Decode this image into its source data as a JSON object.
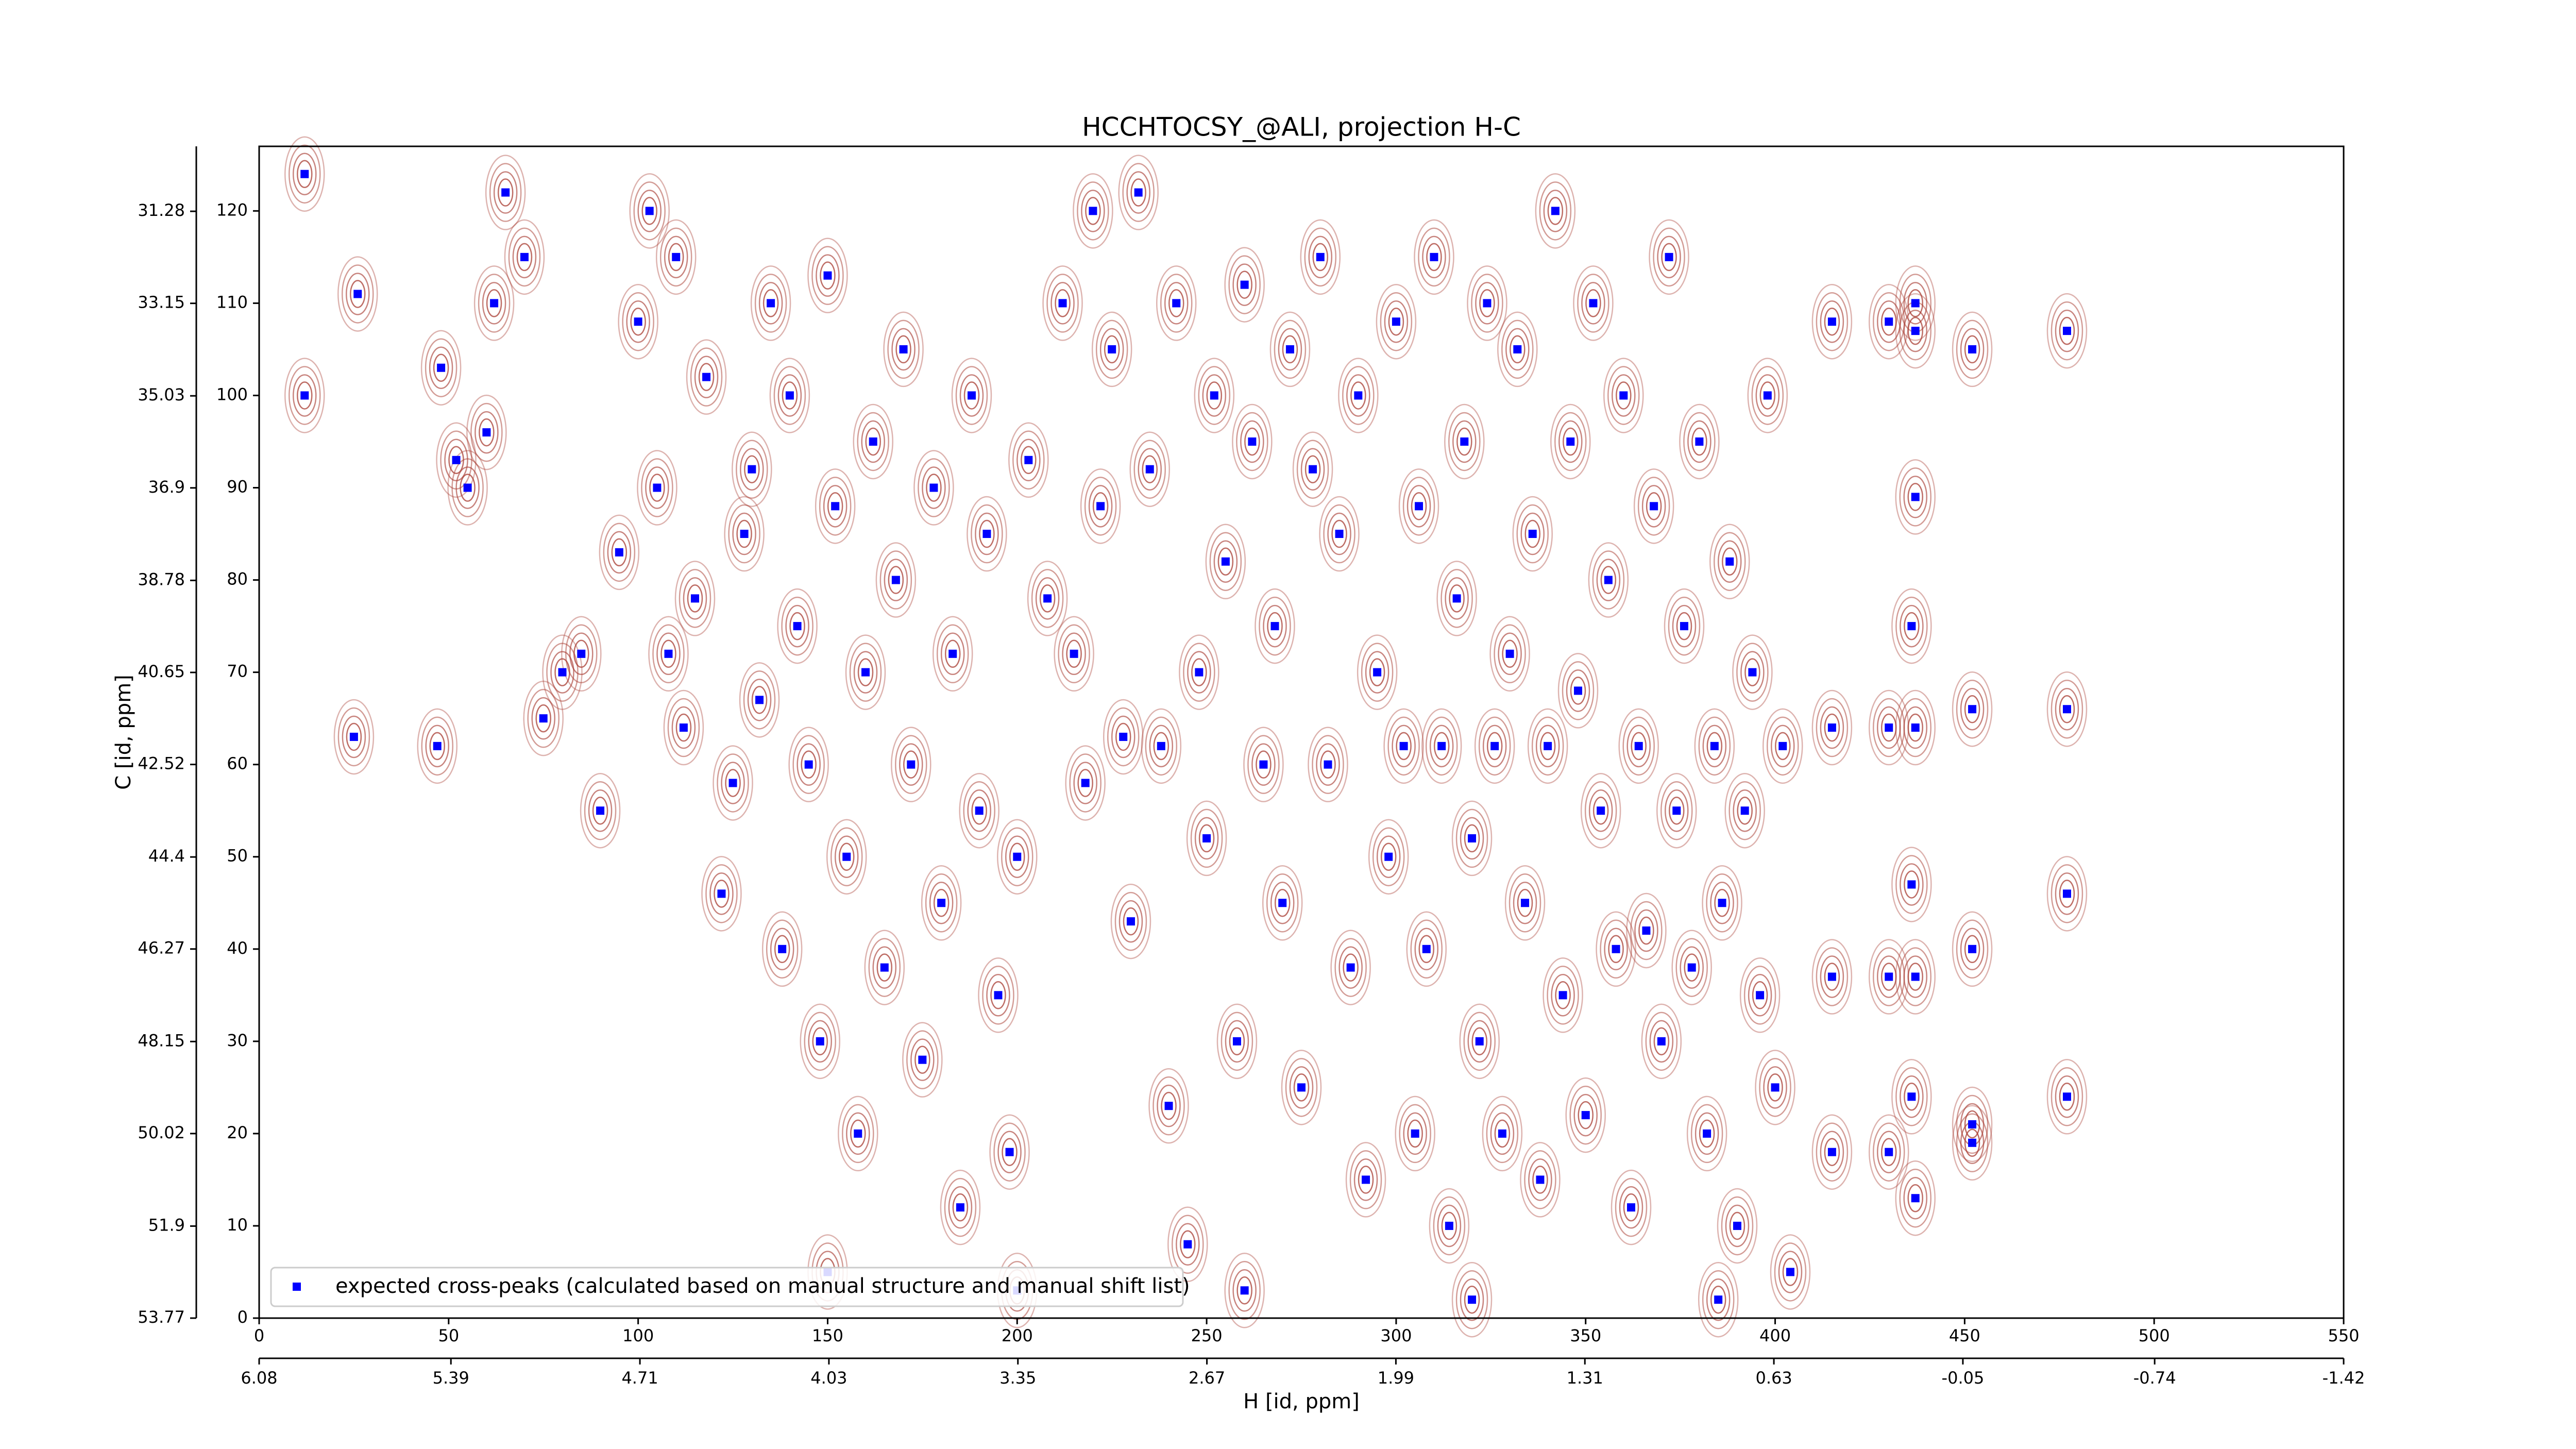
{
  "chart_data": {
    "type": "scatter",
    "title": "HCCHTOCSY_@ALI, projection H-C",
    "x_label": "H [id, ppm]",
    "y_label": "C [id, ppm]",
    "xlim": [
      0,
      550
    ],
    "xticks": [
      0,
      50,
      100,
      150,
      200,
      250,
      300,
      350,
      400,
      450,
      500,
      550
    ],
    "ylim": [
      0,
      127
    ],
    "yticks": [
      0,
      10,
      20,
      30,
      40,
      50,
      60,
      70,
      80,
      90,
      100,
      110,
      120
    ],
    "x2lim": [
      6.08,
      -1.42
    ],
    "x2ticks": [
      6.08,
      5.39,
      4.71,
      4.03,
      3.35,
      2.67,
      1.99,
      1.31,
      0.63,
      -0.05,
      -0.74,
      -1.42
    ],
    "y2lim": [
      53.77,
      29.96
    ],
    "y2ticks": [
      53.77,
      51.9,
      50.02,
      48.15,
      46.27,
      44.4,
      42.52,
      40.65,
      38.78,
      36.9,
      35.03,
      33.15,
      31.28
    ],
    "legend": "lower left",
    "contour_color": "#a83c32",
    "x": [
      12,
      12,
      25,
      26,
      47,
      48,
      52,
      55,
      62,
      60,
      65,
      70,
      75,
      80,
      85,
      90,
      95,
      100,
      103,
      105,
      108,
      110,
      112,
      115,
      118,
      122,
      125,
      128,
      130,
      132,
      135,
      138,
      140,
      142,
      145,
      148,
      150,
      152,
      155,
      158,
      160,
      162,
      165,
      168,
      170,
      172,
      175,
      178,
      180,
      183,
      185,
      188,
      190,
      192,
      195,
      198,
      200,
      203,
      208,
      212,
      215,
      218,
      220,
      222,
      225,
      228,
      230,
      232,
      235,
      238,
      240,
      242,
      245,
      248,
      250,
      252,
      255,
      258,
      260,
      262,
      265,
      268,
      270,
      272,
      275,
      278,
      280,
      282,
      285,
      288,
      290,
      292,
      295,
      298,
      300,
      302,
      305,
      306,
      308,
      310,
      312,
      314,
      316,
      318,
      320,
      322,
      324,
      326,
      328,
      330,
      332,
      334,
      336,
      338,
      340,
      342,
      344,
      346,
      348,
      350,
      352,
      354,
      356,
      358,
      360,
      362,
      364,
      366,
      368,
      370,
      372,
      374,
      376,
      378,
      380,
      382,
      384,
      386,
      388,
      390,
      392,
      394,
      396,
      398,
      400,
      402,
      404,
      415,
      430,
      437,
      437,
      452,
      477,
      437,
      436,
      452,
      477,
      415,
      430,
      437,
      436,
      452,
      477,
      415,
      430,
      437,
      436,
      452,
      477,
      415,
      430,
      437,
      452,
      150,
      200,
      260,
      320,
      385
    ],
    "series": [
      {
        "name": "expected cross-peaks (calculated based on manual structure and manual shift list)",
        "color": "#0000ff",
        "values": [
          100,
          124,
          63,
          111,
          62,
          103,
          93,
          90,
          110,
          96,
          122,
          115,
          65,
          70,
          72,
          55,
          83,
          108,
          120,
          90,
          72,
          115,
          64,
          78,
          102,
          46,
          58,
          85,
          92,
          67,
          110,
          40,
          100,
          75,
          60,
          30,
          113,
          88,
          50,
          20,
          70,
          95,
          38,
          80,
          105,
          60,
          28,
          90,
          45,
          72,
          12,
          100,
          55,
          85,
          35,
          18,
          50,
          93,
          78,
          110,
          72,
          58,
          120,
          88,
          105,
          63,
          43,
          122,
          92,
          62,
          23,
          110,
          8,
          70,
          52,
          100,
          82,
          30,
          112,
          95,
          60,
          75,
          45,
          105,
          25,
          92,
          115,
          60,
          85,
          38,
          100,
          15,
          70,
          50,
          108,
          62,
          20,
          88,
          40,
          115,
          62,
          10,
          78,
          95,
          52,
          30,
          110,
          62,
          20,
          72,
          105,
          45,
          85,
          15,
          62,
          120,
          35,
          95,
          68,
          22,
          110,
          55,
          80,
          40,
          100,
          12,
          62,
          42,
          88,
          30,
          115,
          55,
          75,
          38,
          95,
          20,
          62,
          45,
          82,
          10,
          55,
          70,
          35,
          100,
          25,
          62,
          5,
          108,
          108,
          110,
          107,
          105,
          107,
          89,
          75,
          66,
          66,
          64,
          64,
          64,
          47,
          40,
          46,
          37,
          37,
          37,
          24,
          21,
          24,
          18,
          18,
          13,
          19,
          5,
          3,
          3,
          2,
          2
        ]
      }
    ]
  }
}
